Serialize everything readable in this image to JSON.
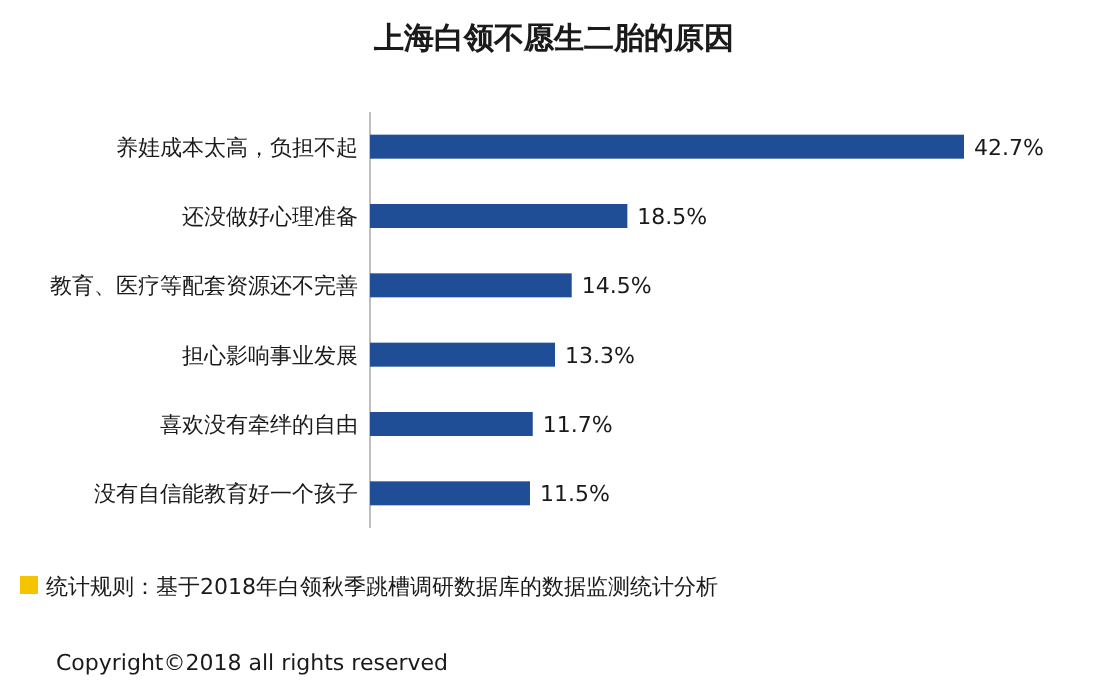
{
  "chart_data": {
    "type": "bar",
    "orientation": "horizontal",
    "title": "上海白领不愿生二胎的原因",
    "categories": [
      "养娃成本太高，负担不起",
      "还没做好心理准备",
      "教育、医疗等配套资源还不完善",
      "担心影响事业发展",
      "喜欢没有牵绊的自由",
      "没有自信能教育好一个孩子"
    ],
    "values": [
      42.7,
      18.5,
      14.5,
      13.3,
      11.7,
      11.5
    ],
    "value_labels": [
      "42.7%",
      "18.5%",
      "14.5%",
      "13.3%",
      "11.7%",
      "11.5%"
    ],
    "color": "#1f4e96",
    "annotations": [
      "统计规则：基于2018年白领秋季跳槽调研数据库的数据监测统计分析",
      "Copyright©2018 all rights reserved"
    ]
  }
}
